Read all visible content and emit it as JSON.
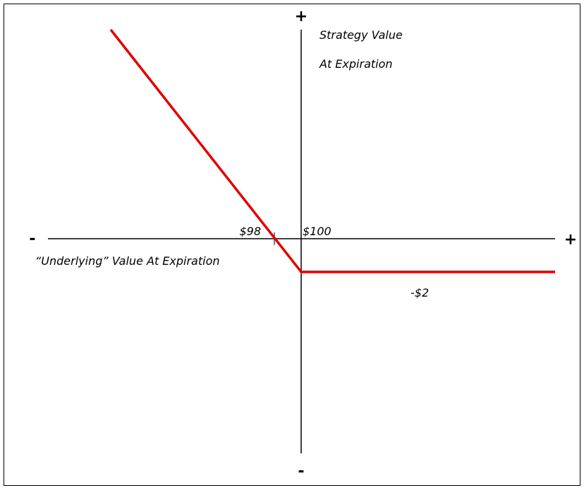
{
  "diagram": {
    "y_axis": {
      "plus_label": "+",
      "minus_label": "-",
      "title_lines": [
        "Strategy Value",
        "At Expiration"
      ]
    },
    "x_axis": {
      "plus_label": "+",
      "minus_label": "-",
      "title": "“Underlying” Value At Expiration"
    },
    "labels": {
      "breakeven": "$98",
      "strike": "$100",
      "max_loss": "-$2"
    }
  }
}
